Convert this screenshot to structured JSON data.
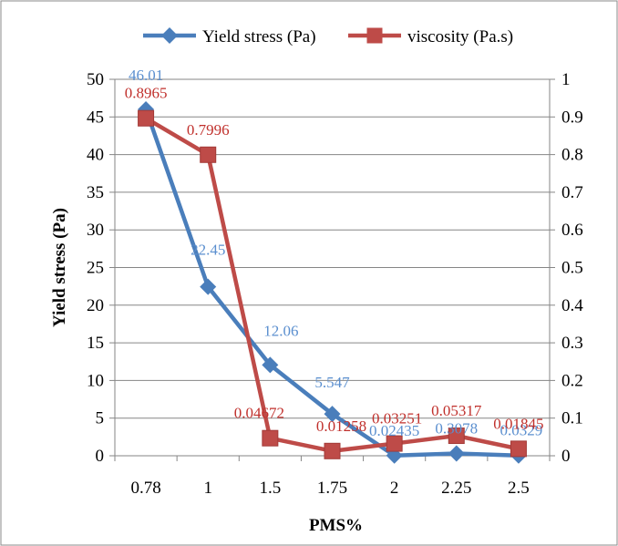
{
  "chart_data": {
    "type": "line",
    "x_categories": [
      "0.78",
      "1",
      "1.5",
      "1.75",
      "2",
      "2.25",
      "2.5"
    ],
    "xlabel": "PMS%",
    "ylabel_left": "Yield stress (Pa)",
    "ylim_left": [
      0,
      50
    ],
    "yticks_left": [
      "0",
      "5",
      "10",
      "15",
      "20",
      "25",
      "30",
      "35",
      "40",
      "45",
      "50"
    ],
    "ylim_right": [
      0,
      1
    ],
    "yticks_right": [
      "0",
      "0.1",
      "0.2",
      "0.3",
      "0.4",
      "0.5",
      "0.6",
      "0.7",
      "0.8",
      "0.9",
      "1"
    ],
    "grid": "horizontal",
    "legend_position": "top",
    "series": [
      {
        "name": "Yield stress (Pa)",
        "axis": "left",
        "marker": "diamond",
        "color": "#4a7ebb",
        "label_color": "#5b8fcf",
        "values": [
          46.01,
          22.45,
          12.06,
          5.547,
          0.02435,
          0.3078,
          0.0329
        ],
        "labels": [
          "46.01",
          "22.45",
          "12.06",
          "5.547",
          "0.02435",
          "0.3078",
          "0.0329"
        ]
      },
      {
        "name": "viscosity (Pa.s)",
        "axis": "right",
        "marker": "square",
        "color": "#be4b48",
        "label_color": "#c0302c",
        "values": [
          0.8965,
          0.7996,
          0.04672,
          0.01258,
          0.03251,
          0.05317,
          0.01845
        ],
        "labels": [
          "0.8965",
          "0.7996",
          "0.04672",
          "0.01258",
          "0.03251",
          "0.05317",
          "0.01845"
        ]
      }
    ]
  }
}
